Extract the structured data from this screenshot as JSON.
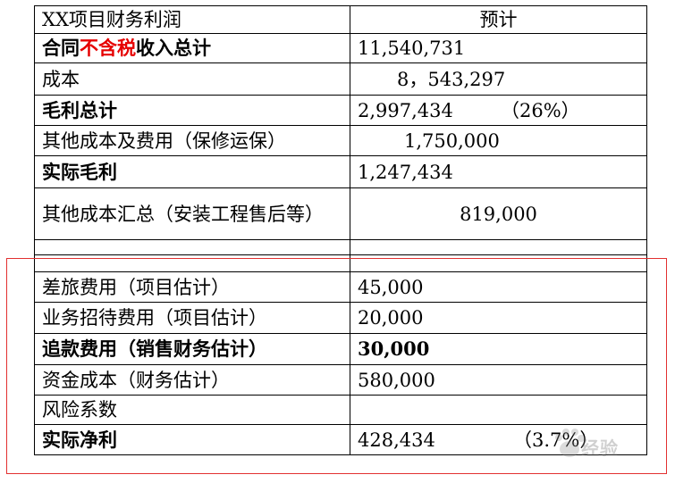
{
  "header": {
    "col1": "XX项目财务利润",
    "col2": "预计"
  },
  "rows": [
    {
      "label_parts": [
        "合同",
        "不含税",
        "收入总计"
      ],
      "value": "11,540,731",
      "pct": "",
      "bold": true
    },
    {
      "label": "成本",
      "value": "8，543,297",
      "pct": ""
    },
    {
      "label": "毛利总计",
      "value": "2,997,434",
      "pct": "（26%）"
    },
    {
      "label": "其他成本及费用（保修运保）",
      "value": "1,750,000",
      "pct": ""
    },
    {
      "label": "实际毛利",
      "value": "1,247,434",
      "pct": ""
    },
    {
      "label": "其他成本汇总（安装工程售后等）",
      "value": "819,000",
      "pct": ""
    },
    {
      "label": "",
      "value": ""
    },
    {
      "label": "",
      "value": ""
    },
    {
      "label": "差旅费用（项目估计）",
      "value": "45,000"
    },
    {
      "label": "业务招待费用（项目估计）",
      "value": "20,000"
    },
    {
      "label": "追款费用（销售财务估计）",
      "value": "30,000"
    },
    {
      "label": "资金成本（财务估计）",
      "value": "580,000"
    },
    {
      "label": "风险系数",
      "value": ""
    },
    {
      "label": "实际净利",
      "value": "428,434",
      "pct": "（3.7%）"
    }
  ],
  "watermark": {
    "text": "经验"
  },
  "colors": {
    "highlight_text": "#e60000",
    "box_border": "#e23030"
  }
}
